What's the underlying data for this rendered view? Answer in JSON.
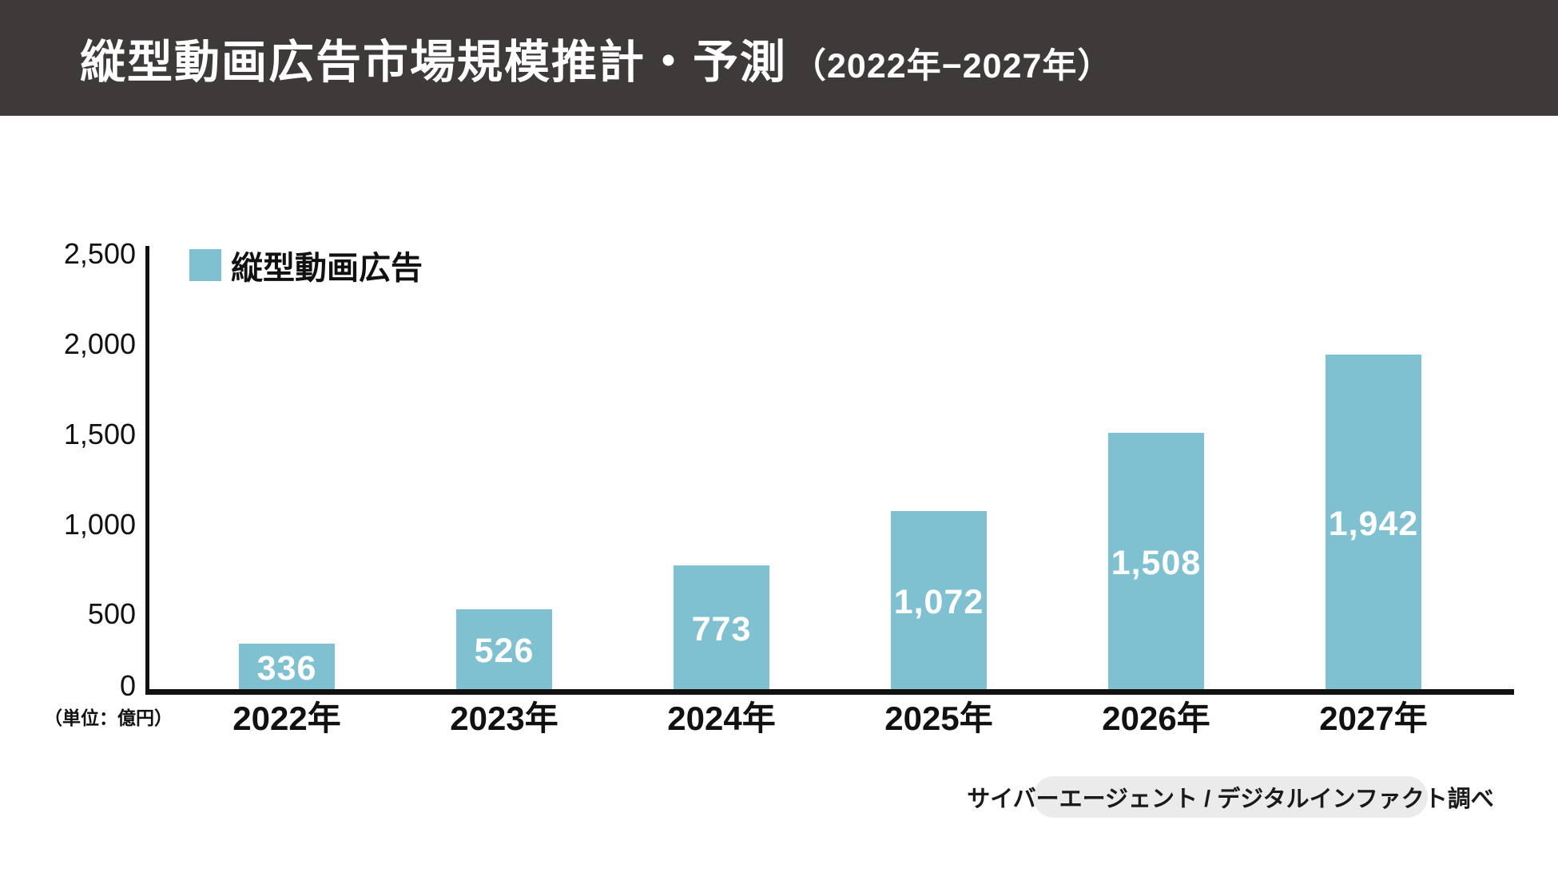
{
  "header": {
    "title_main": "縦型動画広告市場規模推計・予測",
    "title_range": "（2022年−2027年）"
  },
  "legend": {
    "label": "縦型動画広告",
    "swatch_color": "#7FC1D1"
  },
  "source_label": "サイバーエージェント / デジタルインファクト調べ",
  "colors": {
    "header_bg": "#3D3A39",
    "bar": "#7FC1D1",
    "axis": "#111111",
    "value_label_text": "#FFFFFF",
    "source_pill_bg": "#EBEBEB"
  },
  "chart_data": {
    "type": "bar",
    "title": "縦型動画広告市場規模推計・予測（2022年−2027年）",
    "series_name": "縦型動画広告",
    "categories": [
      "2022年",
      "2023年",
      "2024年",
      "2025年",
      "2026年",
      "2027年"
    ],
    "values": [
      336,
      526,
      773,
      1072,
      1508,
      1942
    ],
    "value_labels": [
      "336",
      "526",
      "773",
      "1,072",
      "1,508",
      "1,942"
    ],
    "xlabel": "",
    "ylabel": "（単位：億円）",
    "ylim": [
      0,
      2500
    ],
    "yticks": [
      0,
      500,
      1000,
      1500,
      2000,
      2500
    ],
    "ytick_labels": [
      "0",
      "500",
      "1,000",
      "1,500",
      "2,000",
      "2,500"
    ],
    "grid": false,
    "legend_position": "top-left"
  }
}
